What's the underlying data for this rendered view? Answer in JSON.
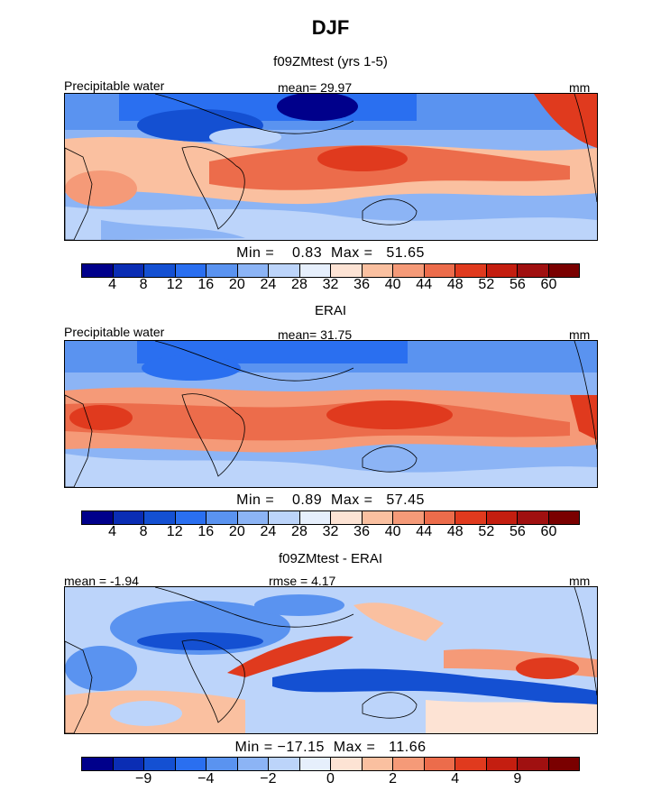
{
  "title": "DJF",
  "panels": [
    {
      "subtitle": "f09ZMtest (yrs 1-5)",
      "left_label": "Precipitable water",
      "center_label": "mean=  29.97",
      "right_label": "mm",
      "stats": "Min =    0.83  Max =   51.65"
    },
    {
      "subtitle": "ERAI",
      "left_label": "Precipitable water",
      "center_label": "mean=  31.75",
      "right_label": "mm",
      "stats": "Min =    0.89  Max =   57.45"
    },
    {
      "subtitle": "f09ZMtest - ERAI",
      "left_label": "mean =  -1.94",
      "center_label": "rmse =    4.17",
      "right_label": "mm",
      "stats": "Min = −17.15  Max =   11.66"
    }
  ],
  "colorbars": {
    "field": {
      "colors": [
        "#00008b",
        "#0a2db4",
        "#1450d2",
        "#2a6ff0",
        "#5a93f0",
        "#8cb4f5",
        "#bcd4fa",
        "#e6effc",
        "#fde3d4",
        "#fac0a0",
        "#f59a78",
        "#ec6c4b",
        "#e03a1e",
        "#c41e10",
        "#a01010",
        "#7a0000"
      ],
      "ticks": [
        "4",
        "8",
        "12",
        "16",
        "20",
        "24",
        "28",
        "32",
        "36",
        "40",
        "44",
        "48",
        "52",
        "56",
        "60"
      ]
    },
    "diff": {
      "colors": [
        "#00008b",
        "#0a2db4",
        "#1450d2",
        "#2a6ff0",
        "#5a93f0",
        "#8cb4f5",
        "#bcd4fa",
        "#e6effc",
        "#fde3d4",
        "#fac0a0",
        "#f59a78",
        "#ec6c4b",
        "#e03a1e",
        "#c41e10",
        "#a01010",
        "#7a0000"
      ],
      "ticks": [
        "−9",
        "−4",
        "−2",
        "0",
        "2",
        "4",
        "9"
      ]
    }
  },
  "chart_data": [
    {
      "type": "heatmap",
      "title": "f09ZMtest (yrs 1-5)",
      "variable": "Precipitable water",
      "units": "mm",
      "mean": 29.97,
      "min": 0.83,
      "max": 51.65,
      "levels": [
        4,
        8,
        12,
        16,
        20,
        24,
        28,
        32,
        36,
        40,
        44,
        48,
        52,
        56,
        60
      ],
      "lon_range": [
        0,
        360
      ],
      "lat_range": [
        -40,
        40
      ]
    },
    {
      "type": "heatmap",
      "title": "ERAI",
      "variable": "Precipitable water",
      "units": "mm",
      "mean": 31.75,
      "min": 0.89,
      "max": 57.45,
      "levels": [
        4,
        8,
        12,
        16,
        20,
        24,
        28,
        32,
        36,
        40,
        44,
        48,
        52,
        56,
        60
      ],
      "lon_range": [
        0,
        360
      ],
      "lat_range": [
        -40,
        40
      ]
    },
    {
      "type": "heatmap",
      "title": "f09ZMtest - ERAI",
      "units": "mm",
      "mean": -1.94,
      "rmse": 4.17,
      "min": -17.15,
      "max": 11.66,
      "levels": [
        -9,
        -4,
        -2,
        0,
        2,
        4,
        9
      ],
      "lon_range": [
        0,
        360
      ],
      "lat_range": [
        -40,
        40
      ]
    }
  ]
}
